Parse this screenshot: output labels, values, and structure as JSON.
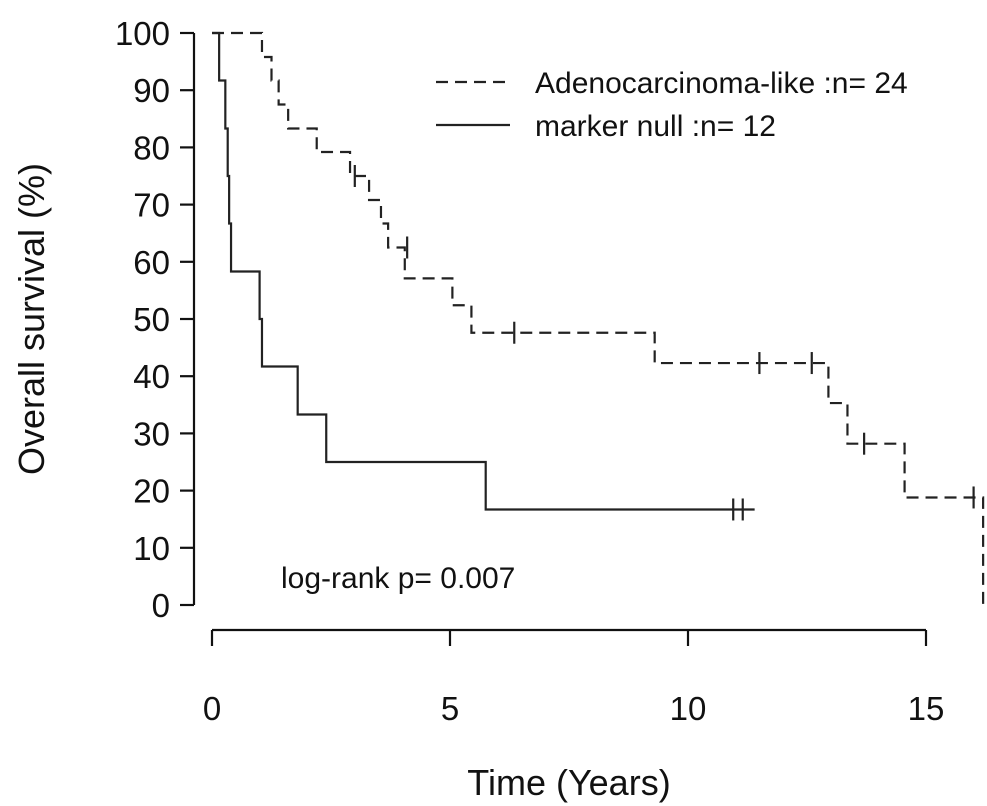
{
  "chart_data": {
    "type": "line",
    "subtype": "kaplan-meier",
    "xlabel": "Time (Years)",
    "ylabel": "Overall survival (%)",
    "xlim": [
      0,
      16.2
    ],
    "ylim": [
      0,
      100
    ],
    "xticks": [
      0,
      5,
      10,
      15
    ],
    "yticks": [
      0,
      10,
      20,
      30,
      40,
      50,
      60,
      70,
      80,
      90,
      100
    ],
    "legend_position": "top-right",
    "annotation": "log-rank p= 0.007",
    "series": [
      {
        "name": "Adenocarcinoma-like :n= 24",
        "style": "dashed",
        "color": "#222222",
        "steps": [
          [
            0,
            100
          ],
          [
            1.05,
            95.8
          ],
          [
            1.25,
            91.7
          ],
          [
            1.4,
            87.5
          ],
          [
            1.6,
            83.3
          ],
          [
            2.2,
            79.2
          ],
          [
            2.9,
            75.0
          ],
          [
            3.3,
            70.8
          ],
          [
            3.55,
            66.7
          ],
          [
            3.7,
            62.5
          ],
          [
            4.05,
            57.1
          ],
          [
            5.05,
            52.4
          ],
          [
            5.45,
            47.6
          ],
          [
            9.3,
            42.3
          ],
          [
            12.95,
            35.3
          ],
          [
            13.35,
            28.2
          ],
          [
            14.55,
            18.8
          ],
          [
            16.2,
            0
          ]
        ],
        "end": 16.2,
        "censored": [
          [
            3.0,
            75.0
          ],
          [
            4.1,
            62.5
          ],
          [
            6.35,
            47.6
          ],
          [
            11.5,
            42.3
          ],
          [
            12.6,
            42.3
          ],
          [
            13.7,
            28.2
          ],
          [
            16.0,
            18.8
          ]
        ]
      },
      {
        "name": "marker null :n= 12",
        "style": "solid",
        "color": "#222222",
        "steps": [
          [
            0,
            100
          ],
          [
            0.15,
            91.7
          ],
          [
            0.28,
            83.3
          ],
          [
            0.33,
            75.0
          ],
          [
            0.36,
            66.7
          ],
          [
            0.4,
            58.3
          ],
          [
            1.0,
            50.0
          ],
          [
            1.05,
            41.7
          ],
          [
            1.8,
            33.3
          ],
          [
            2.4,
            25.0
          ],
          [
            5.75,
            16.7
          ]
        ],
        "end": 11.4,
        "censored": [
          [
            10.95,
            16.7
          ],
          [
            11.15,
            16.7
          ]
        ]
      }
    ]
  }
}
